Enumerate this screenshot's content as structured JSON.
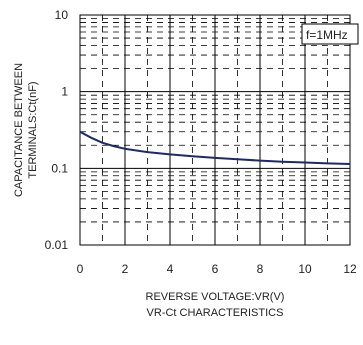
{
  "chart_data": {
    "type": "line",
    "title": "",
    "caption": "VR-Ct CHARACTERISTICS",
    "xlabel": "REVERSE VOLTAGE:VR(V)",
    "ylabel_lines": [
      "CAPACITANCE BETWEEN",
      "TERMINALS:Ct(nF)"
    ],
    "xlim": [
      0,
      12
    ],
    "ylim": [
      0.01,
      10
    ],
    "yscale": "log",
    "xticks": [
      "0",
      "2",
      "4",
      "6",
      "8",
      "10",
      "12"
    ],
    "yticks": [
      "0.01",
      "0.1",
      "1",
      "10"
    ],
    "grid": true,
    "annotation": "f=1MHz",
    "line_color": "#1c2a6b",
    "series": [
      {
        "x": [
          0,
          0.5,
          1,
          1.5,
          2,
          3,
          4,
          5,
          6,
          7,
          8,
          9,
          10,
          11,
          12
        ],
        "values": [
          0.3,
          0.25,
          0.215,
          0.195,
          0.18,
          0.163,
          0.152,
          0.144,
          0.137,
          0.131,
          0.126,
          0.122,
          0.119,
          0.116,
          0.114
        ]
      }
    ]
  }
}
